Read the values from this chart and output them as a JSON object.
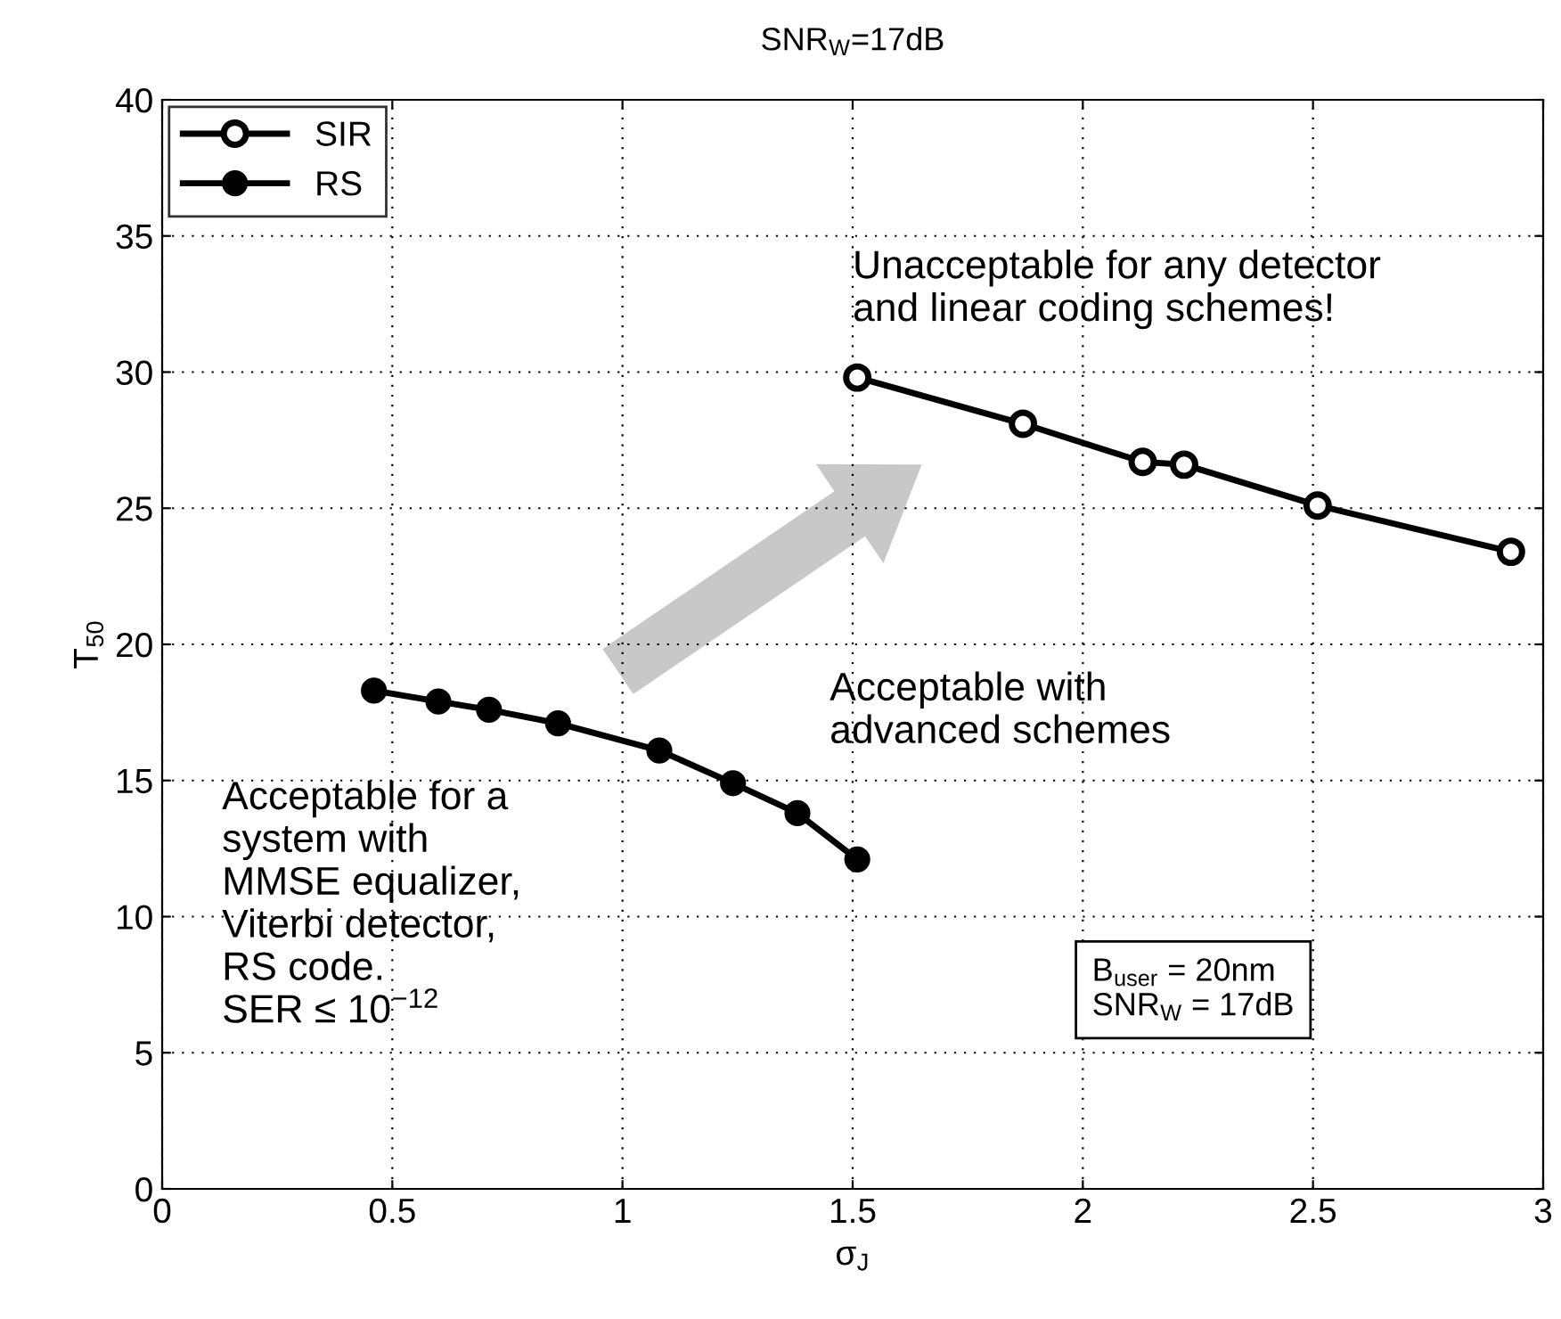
{
  "chart_data": {
    "type": "line",
    "title": "SNR$_{W}$=17dB",
    "xlabel": "σ$_{J}$",
    "ylabel": "T$_{50}$",
    "xlim": [
      0,
      3
    ],
    "xticks": [
      0,
      0.5,
      1,
      1.5,
      2,
      2.5,
      3
    ],
    "ylim": [
      0,
      40
    ],
    "yticks": [
      0,
      5,
      10,
      15,
      20,
      25,
      30,
      35,
      40
    ],
    "grid": true,
    "legend": "top left",
    "line_style": "solid",
    "series": [
      {
        "name": "SIR",
        "color": "#000000",
        "marker": "circle",
        "x": [
          1.51,
          1.87,
          2.13,
          2.22,
          2.51,
          2.93
        ],
        "values": [
          29.8,
          28.1,
          26.7,
          26.6,
          25.1,
          23.4
        ]
      },
      {
        "name": "RS",
        "color": "#000000",
        "marker": "circle",
        "x": [
          0.46,
          0.6,
          0.71,
          0.86,
          1.08,
          1.24,
          1.38,
          1.51
        ],
        "values": [
          18.3,
          17.9,
          17.6,
          17.1,
          16.1,
          14.9,
          13.8,
          12.1
        ]
      }
    ],
    "annotations": [
      "Unacceptable for any detector\nand linear coding schemes!",
      "Acceptable with\nadvanced schemes",
      "Acceptable for a\nsystem with\nMMSE equalizer,\nViterbi detector,\nRS code.\nSER ≤ 10$^{−12}$",
      "B$_{user}$ = 20nm\nSNR$_{W}$ = 17dB"
    ]
  }
}
